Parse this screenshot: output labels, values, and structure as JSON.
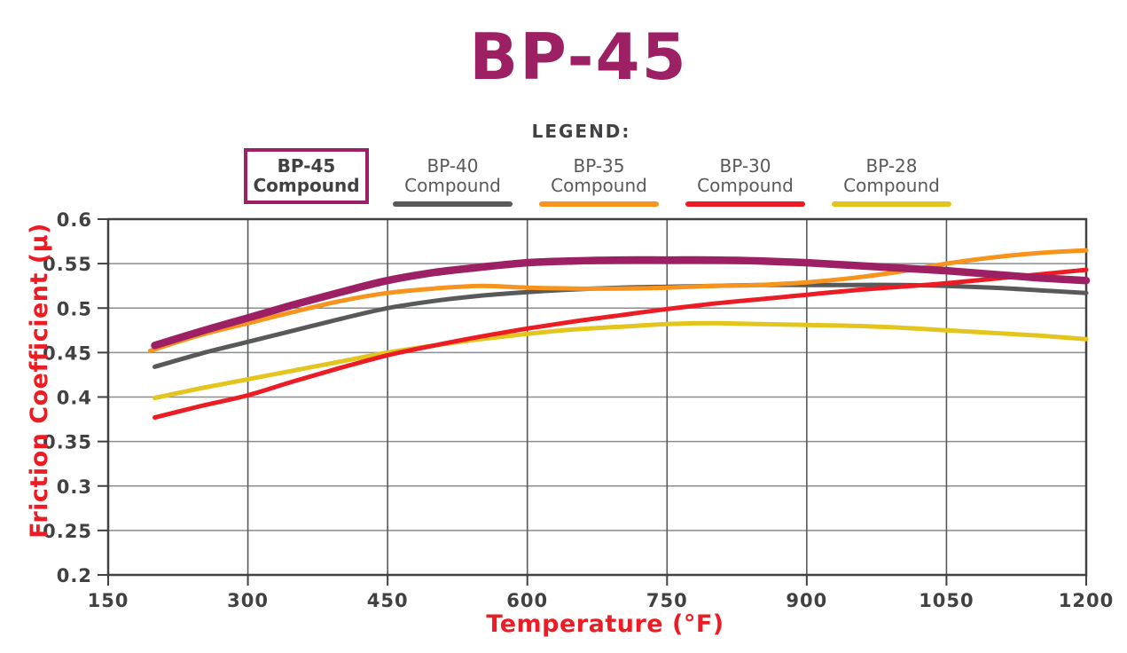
{
  "title": "BP-45",
  "legend": {
    "title": "LEGEND:"
  },
  "colors": {
    "accent_magenta": "#9C2063",
    "axis_title_red": "#ED1C24",
    "tick_text": "#414042",
    "legend_text": "#58595B",
    "frame": "#414042",
    "grid_horizontal": "#8A8C8E",
    "grid_vertical": "#58595B"
  },
  "chart_data": {
    "type": "line",
    "title": "BP-45",
    "xlabel": "Temperature (°F)",
    "ylabel": "Friction Coefficient (μ)",
    "xlim": [
      150,
      1200
    ],
    "ylim": [
      0.2,
      0.6
    ],
    "grid": true,
    "legend_position": "top-center",
    "x_ticks": {
      "values": [
        150,
        300,
        450,
        600,
        750,
        900,
        1050,
        1200
      ],
      "labels": [
        "150",
        "300",
        "450",
        "600",
        "750",
        "900",
        "1050",
        "1200"
      ]
    },
    "y_ticks": {
      "values": [
        0.2,
        0.25,
        0.3,
        0.35,
        0.4,
        0.45,
        0.5,
        0.55,
        0.6
      ],
      "labels": [
        "0.2",
        "0.25",
        "0.3",
        "0.35",
        "0.4",
        "0.45",
        "0.5",
        "0.55",
        "0.6"
      ]
    },
    "series": [
      {
        "label": "BP-45",
        "sublabel": "Compound",
        "color": "#9C2063",
        "stroke_width": 8.5,
        "boxed": true,
        "z": 5,
        "x": [
          200,
          250,
          300,
          350,
          400,
          450,
          500,
          550,
          600,
          650,
          700,
          750,
          800,
          850,
          900,
          950,
          1000,
          1050,
          1100,
          1150,
          1200
        ],
        "y": [
          0.458,
          0.474,
          0.489,
          0.504,
          0.518,
          0.531,
          0.54,
          0.546,
          0.551,
          0.553,
          0.554,
          0.554,
          0.554,
          0.553,
          0.551,
          0.548,
          0.545,
          0.542,
          0.538,
          0.534,
          0.531
        ]
      },
      {
        "label": "BP-40",
        "sublabel": "Compound",
        "color": "#58595B",
        "stroke_width": 5,
        "boxed": false,
        "z": 2,
        "x": [
          200,
          250,
          300,
          350,
          400,
          450,
          500,
          550,
          600,
          650,
          700,
          750,
          800,
          850,
          900,
          950,
          1000,
          1050,
          1100,
          1150,
          1200
        ],
        "y": [
          0.434,
          0.449,
          0.462,
          0.475,
          0.488,
          0.5,
          0.508,
          0.514,
          0.518,
          0.521,
          0.523,
          0.524,
          0.525,
          0.526,
          0.526,
          0.526,
          0.526,
          0.525,
          0.523,
          0.52,
          0.517
        ]
      },
      {
        "label": "BP-35",
        "sublabel": "Compound",
        "color": "#F7941E",
        "stroke_width": 5,
        "boxed": false,
        "z": 3,
        "x": [
          195,
          250,
          300,
          350,
          400,
          450,
          500,
          550,
          600,
          650,
          700,
          750,
          800,
          850,
          900,
          950,
          1000,
          1050,
          1100,
          1150,
          1200
        ],
        "y": [
          0.452,
          0.47,
          0.483,
          0.496,
          0.508,
          0.517,
          0.522,
          0.525,
          0.523,
          0.522,
          0.522,
          0.523,
          0.525,
          0.526,
          0.529,
          0.534,
          0.541,
          0.55,
          0.557,
          0.562,
          0.565
        ]
      },
      {
        "label": "BP-30",
        "sublabel": "Compound",
        "color": "#EC1C24",
        "stroke_width": 5,
        "boxed": false,
        "z": 4,
        "x": [
          200,
          250,
          300,
          350,
          400,
          450,
          500,
          550,
          600,
          650,
          700,
          750,
          800,
          850,
          900,
          950,
          1000,
          1050,
          1100,
          1150,
          1200
        ],
        "y": [
          0.377,
          0.39,
          0.402,
          0.418,
          0.433,
          0.447,
          0.458,
          0.468,
          0.477,
          0.485,
          0.492,
          0.499,
          0.505,
          0.51,
          0.515,
          0.52,
          0.524,
          0.528,
          0.533,
          0.538,
          0.543
        ]
      },
      {
        "label": "BP-28",
        "sublabel": "Compound",
        "color": "#E3C51D",
        "stroke_width": 5,
        "boxed": false,
        "z": 1,
        "x": [
          200,
          250,
          300,
          350,
          400,
          450,
          500,
          550,
          600,
          650,
          700,
          750,
          800,
          850,
          900,
          950,
          1000,
          1050,
          1100,
          1150,
          1200
        ],
        "y": [
          0.399,
          0.41,
          0.42,
          0.43,
          0.44,
          0.45,
          0.458,
          0.465,
          0.471,
          0.476,
          0.479,
          0.482,
          0.483,
          0.482,
          0.481,
          0.48,
          0.478,
          0.475,
          0.472,
          0.469,
          0.465
        ]
      }
    ]
  }
}
